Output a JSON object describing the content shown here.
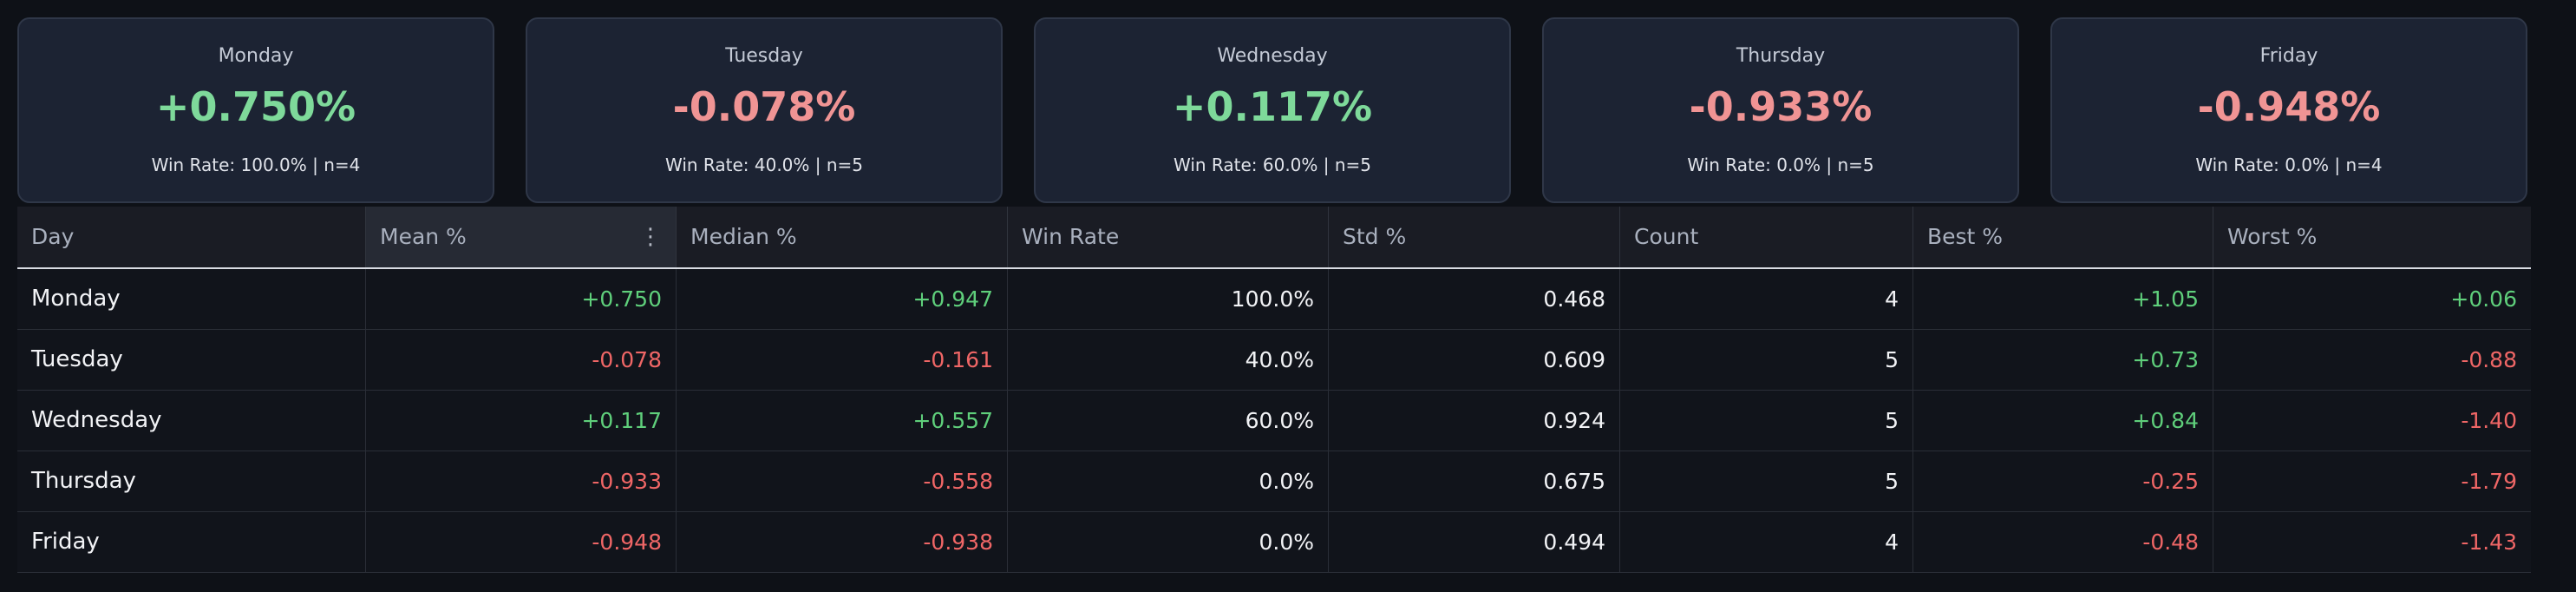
{
  "cards": [
    {
      "day": "Monday",
      "mean": "+0.750%",
      "meta": "Win Rate: 100.0% | n=4",
      "sign": "pos"
    },
    {
      "day": "Tuesday",
      "mean": "-0.078%",
      "meta": "Win Rate: 40.0% | n=5",
      "sign": "neg"
    },
    {
      "day": "Wednesday",
      "mean": "+0.117%",
      "meta": "Win Rate: 60.0% | n=5",
      "sign": "pos"
    },
    {
      "day": "Thursday",
      "mean": "-0.933%",
      "meta": "Win Rate: 0.0% | n=5",
      "sign": "neg"
    },
    {
      "day": "Friday",
      "mean": "-0.948%",
      "meta": "Win Rate: 0.0% | n=4",
      "sign": "neg"
    }
  ],
  "table": {
    "columns": [
      "Day",
      "Mean %",
      "Median %",
      "Win Rate",
      "Std %",
      "Count",
      "Best %",
      "Worst %"
    ],
    "column_menu_icon": "kebab-menu-icon",
    "rows": [
      [
        "Monday",
        "+0.750",
        "+0.947",
        "100.0%",
        "0.468",
        "4",
        "+1.05",
        "+0.06"
      ],
      [
        "Tuesday",
        "-0.078",
        "-0.161",
        "40.0%",
        "0.609",
        "5",
        "+0.73",
        "-0.88"
      ],
      [
        "Wednesday",
        "+0.117",
        "+0.557",
        "60.0%",
        "0.924",
        "5",
        "+0.84",
        "-1.40"
      ],
      [
        "Thursday",
        "-0.933",
        "-0.558",
        "0.0%",
        "0.675",
        "5",
        "-0.25",
        "-1.79"
      ],
      [
        "Friday",
        "-0.948",
        "-0.938",
        "0.0%",
        "0.494",
        "4",
        "-0.48",
        "-1.43"
      ]
    ]
  },
  "colors": {
    "background": "#0e1117",
    "card": "#1c2333",
    "positive": "#7ed99a",
    "negative": "#f09494",
    "cell_positive": "#5fcf7b",
    "cell_negative": "#ef6666"
  }
}
